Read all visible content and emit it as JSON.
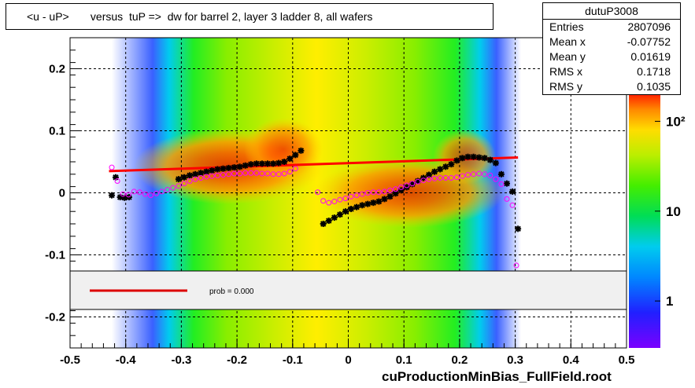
{
  "chart_data": {
    "type": "scatter",
    "title": "<u - uP>       versus  tuP =>  dw for barrel 2, layer 3 ladder 8, all wafers",
    "xlim": [
      -0.5,
      0.5
    ],
    "ylim": [
      -0.25,
      0.25
    ],
    "x_ticks": [
      {
        "v": -0.5,
        "label": "-0.5"
      },
      {
        "v": -0.4,
        "label": "-0.4"
      },
      {
        "v": -0.3,
        "label": "-0.3"
      },
      {
        "v": -0.2,
        "label": "-0.2"
      },
      {
        "v": -0.1,
        "label": "-0.1"
      },
      {
        "v": 0,
        "label": "0"
      },
      {
        "v": 0.1,
        "label": "0.1"
      },
      {
        "v": 0.2,
        "label": "0.2"
      },
      {
        "v": 0.3,
        "label": "0.3"
      },
      {
        "v": 0.4,
        "label": "0.4"
      },
      {
        "v": 0.5,
        "label": "0.5"
      }
    ],
    "y_ticks": [
      {
        "v": -0.2,
        "label": "-0.2"
      },
      {
        "v": -0.1,
        "label": "-0.1"
      },
      {
        "v": 0,
        "label": "0"
      },
      {
        "v": 0.1,
        "label": "0.1"
      },
      {
        "v": 0.2,
        "label": "0.2"
      }
    ],
    "grid": true,
    "color_scale": {
      "scale": "log",
      "labels": [
        {
          "v": 100,
          "label": "10²"
        },
        {
          "v": 10,
          "label": "10"
        },
        {
          "v": 1,
          "label": "1"
        }
      ]
    },
    "fit_line": {
      "x": [
        -0.43,
        0.305
      ],
      "y": [
        0.035,
        0.057
      ],
      "color": "#ff0000"
    },
    "series": [
      {
        "marker": "star",
        "color": "#000000",
        "points": [
          [
            -0.425,
            -0.004
          ],
          [
            -0.418,
            0.025
          ],
          [
            -0.41,
            -0.007
          ],
          [
            -0.402,
            -0.008
          ],
          [
            -0.394,
            -0.007
          ],
          [
            -0.305,
            0.022
          ],
          [
            -0.295,
            0.025
          ],
          [
            -0.285,
            0.028
          ],
          [
            -0.275,
            0.03
          ],
          [
            -0.265,
            0.032
          ],
          [
            -0.255,
            0.034
          ],
          [
            -0.245,
            0.036
          ],
          [
            -0.235,
            0.038
          ],
          [
            -0.225,
            0.039
          ],
          [
            -0.215,
            0.04
          ],
          [
            -0.205,
            0.041
          ],
          [
            -0.195,
            0.042
          ],
          [
            -0.185,
            0.044
          ],
          [
            -0.175,
            0.046
          ],
          [
            -0.165,
            0.047
          ],
          [
            -0.155,
            0.047
          ],
          [
            -0.145,
            0.047
          ],
          [
            -0.135,
            0.047
          ],
          [
            -0.125,
            0.048
          ],
          [
            -0.115,
            0.05
          ],
          [
            -0.105,
            0.055
          ],
          [
            -0.095,
            0.061
          ],
          [
            -0.085,
            0.068
          ],
          [
            -0.045,
            -0.05
          ],
          [
            -0.035,
            -0.045
          ],
          [
            -0.025,
            -0.04
          ],
          [
            -0.015,
            -0.035
          ],
          [
            -0.005,
            -0.03
          ],
          [
            0.005,
            -0.026
          ],
          [
            0.015,
            -0.023
          ],
          [
            0.025,
            -0.02
          ],
          [
            0.035,
            -0.018
          ],
          [
            0.045,
            -0.016
          ],
          [
            0.055,
            -0.014
          ],
          [
            0.065,
            -0.01
          ],
          [
            0.075,
            -0.006
          ],
          [
            0.085,
            -0.001
          ],
          [
            0.095,
            0.004
          ],
          [
            0.105,
            0.009
          ],
          [
            0.115,
            0.014
          ],
          [
            0.125,
            0.019
          ],
          [
            0.135,
            0.024
          ],
          [
            0.145,
            0.029
          ],
          [
            0.155,
            0.034
          ],
          [
            0.165,
            0.038
          ],
          [
            0.175,
            0.042
          ],
          [
            0.185,
            0.046
          ],
          [
            0.195,
            0.052
          ],
          [
            0.205,
            0.056
          ],
          [
            0.215,
            0.058
          ],
          [
            0.225,
            0.058
          ],
          [
            0.235,
            0.057
          ],
          [
            0.245,
            0.056
          ],
          [
            0.255,
            0.053
          ],
          [
            0.265,
            0.048
          ],
          [
            0.275,
            0.03
          ],
          [
            0.285,
            0.015
          ],
          [
            0.295,
            0.002
          ],
          [
            0.305,
            -0.058
          ]
        ]
      },
      {
        "marker": "open-circle",
        "color": "#ff00ff",
        "points": [
          [
            -0.425,
            0.041
          ],
          [
            -0.415,
            0.019
          ],
          [
            -0.405,
            -0.002
          ],
          [
            -0.395,
            -0.003
          ],
          [
            -0.385,
            0.002
          ],
          [
            -0.375,
            0.001
          ],
          [
            -0.365,
            -0.002
          ],
          [
            -0.355,
            -0.004
          ],
          [
            -0.345,
            -0.001
          ],
          [
            -0.335,
            0.002
          ],
          [
            -0.325,
            0.005
          ],
          [
            -0.315,
            0.008
          ],
          [
            -0.305,
            0.011
          ],
          [
            -0.295,
            0.015
          ],
          [
            -0.285,
            0.019
          ],
          [
            -0.275,
            0.022
          ],
          [
            -0.265,
            0.024
          ],
          [
            -0.255,
            0.026
          ],
          [
            -0.245,
            0.027
          ],
          [
            -0.235,
            0.028
          ],
          [
            -0.225,
            0.029
          ],
          [
            -0.215,
            0.03
          ],
          [
            -0.205,
            0.031
          ],
          [
            -0.195,
            0.031
          ],
          [
            -0.185,
            0.032
          ],
          [
            -0.175,
            0.032
          ],
          [
            -0.165,
            0.032
          ],
          [
            -0.155,
            0.031
          ],
          [
            -0.145,
            0.031
          ],
          [
            -0.135,
            0.03
          ],
          [
            -0.125,
            0.03
          ],
          [
            -0.115,
            0.031
          ],
          [
            -0.105,
            0.034
          ],
          [
            -0.095,
            0.039
          ],
          [
            -0.055,
            0.001
          ],
          [
            -0.045,
            -0.013
          ],
          [
            -0.035,
            -0.016
          ],
          [
            -0.025,
            -0.014
          ],
          [
            -0.015,
            -0.011
          ],
          [
            -0.005,
            -0.009
          ],
          [
            0.005,
            -0.006
          ],
          [
            0.015,
            -0.004
          ],
          [
            0.025,
            -0.002
          ],
          [
            0.035,
            0.0
          ],
          [
            0.045,
            0.001
          ],
          [
            0.055,
            0.001
          ],
          [
            0.065,
            0.002
          ],
          [
            0.075,
            0.004
          ],
          [
            0.085,
            0.006
          ],
          [
            0.095,
            0.009
          ],
          [
            0.105,
            0.012
          ],
          [
            0.115,
            0.015
          ],
          [
            0.125,
            0.018
          ],
          [
            0.135,
            0.02
          ],
          [
            0.145,
            0.022
          ],
          [
            0.155,
            0.023
          ],
          [
            0.165,
            0.024
          ],
          [
            0.175,
            0.024
          ],
          [
            0.185,
            0.024
          ],
          [
            0.195,
            0.025
          ],
          [
            0.205,
            0.027
          ],
          [
            0.215,
            0.029
          ],
          [
            0.225,
            0.03
          ],
          [
            0.235,
            0.031
          ],
          [
            0.245,
            0.03
          ],
          [
            0.255,
            0.028
          ],
          [
            0.265,
            0.022
          ],
          [
            0.275,
            0.014
          ],
          [
            0.285,
            -0.01
          ],
          [
            0.295,
            -0.02
          ],
          [
            0.302,
            -0.117
          ]
        ]
      }
    ],
    "legend": {
      "line_color": "#dd0000",
      "label": "prob = 0.000"
    }
  },
  "stats": {
    "name": "dutuP3008",
    "rows": [
      {
        "key": "Entries",
        "value": "2807096"
      },
      {
        "key": "Mean x",
        "value": "-0.07752"
      },
      {
        "key": "Mean y",
        "value": "0.01619"
      },
      {
        "key": "RMS x",
        "value": "0.1718"
      },
      {
        "key": "RMS y",
        "value": "0.1035"
      }
    ]
  },
  "footer": "cuProductionMinBias_FullField.root"
}
